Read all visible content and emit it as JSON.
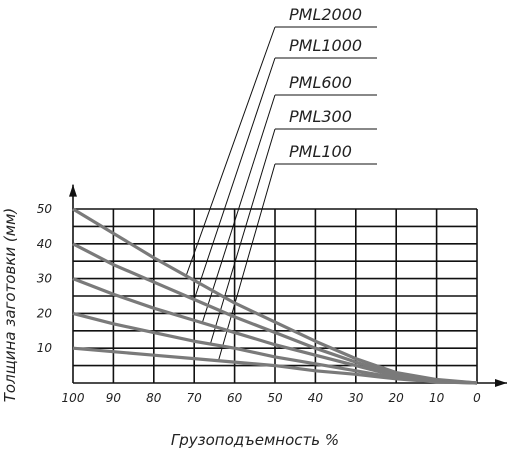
{
  "chart_data": {
    "type": "line",
    "xlabel": "Грузоподъемность %",
    "ylabel": "Толщина заготовки (мм)",
    "x_ticks": [
      "100",
      "90",
      "80",
      "70",
      "60",
      "50",
      "40",
      "30",
      "20",
      "10",
      "0"
    ],
    "y_ticks": [
      "10",
      "20",
      "30",
      "40",
      "50"
    ],
    "xlim": [
      100,
      0
    ],
    "ylim": [
      0,
      57
    ],
    "grid": true,
    "x": [
      100,
      90,
      80,
      70,
      60,
      50,
      40,
      30,
      20,
      10,
      0
    ],
    "series": [
      {
        "name": "PML2000",
        "values": [
          50,
          43,
          36,
          29.5,
          23,
          17.5,
          12,
          7,
          3,
          1,
          0
        ]
      },
      {
        "name": "PML1000",
        "values": [
          40,
          34,
          29,
          24,
          19,
          14.5,
          10,
          6,
          2.5,
          0.8,
          0
        ]
      },
      {
        "name": "PML600",
        "values": [
          30,
          25.5,
          21.5,
          18,
          14.5,
          11,
          8,
          5,
          2,
          0.6,
          0
        ]
      },
      {
        "name": "PML300",
        "values": [
          20,
          17,
          14.5,
          12,
          10,
          7.5,
          5.5,
          3.5,
          1.5,
          0.4,
          0
        ]
      },
      {
        "name": "PML100",
        "values": [
          10,
          9,
          8,
          7,
          6,
          5,
          3.5,
          2.5,
          1.2,
          0.3,
          0
        ]
      }
    ]
  }
}
